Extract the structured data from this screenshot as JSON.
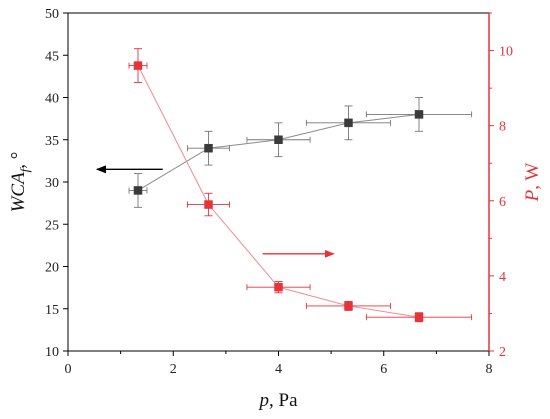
{
  "chart_data": {
    "type": "scatter",
    "title": "",
    "xlabel": {
      "symbol": "p",
      "unit": ", Pa"
    },
    "ylabel_left": {
      "symbol": "WCA",
      "subscript": "f",
      "unit": ", °"
    },
    "ylabel_right": {
      "symbol": "P",
      "unit": ", W"
    },
    "xlim": [
      0,
      8
    ],
    "ylim_left": [
      10,
      50
    ],
    "ylim_right": [
      2,
      11
    ],
    "x_ticks": [
      0,
      2,
      4,
      6,
      8
    ],
    "y_left_ticks": [
      10,
      15,
      20,
      25,
      30,
      35,
      40,
      45,
      50
    ],
    "y_right_ticks": [
      2,
      4,
      6,
      8,
      10
    ],
    "grid": false,
    "series": [
      {
        "axis": "left",
        "color": "#3a3a3a",
        "marker": "square",
        "points": [
          {
            "x": 1.33,
            "y": 29,
            "xerr": 0.17,
            "yerr": 2
          },
          {
            "x": 2.67,
            "y": 34,
            "xerr": 0.4,
            "yerr": 2
          },
          {
            "x": 4.0,
            "y": 35,
            "xerr": 0.6,
            "yerr": 2
          },
          {
            "x": 5.33,
            "y": 37,
            "xerr": 0.8,
            "yerr": 2
          },
          {
            "x": 6.67,
            "y": 38,
            "xerr": 1.0,
            "yerr": 2
          }
        ]
      },
      {
        "axis": "right",
        "color": "#e8323a",
        "marker": "square",
        "points": [
          {
            "x": 1.33,
            "y": 9.6,
            "xerr": 0.17,
            "yerr": 0.45
          },
          {
            "x": 2.67,
            "y": 5.9,
            "xerr": 0.4,
            "yerr": 0.3
          },
          {
            "x": 4.0,
            "y": 3.7,
            "xerr": 0.6,
            "yerr": 0.15
          },
          {
            "x": 5.33,
            "y": 3.2,
            "xerr": 0.8,
            "yerr": 0.12
          },
          {
            "x": 6.67,
            "y": 2.9,
            "xerr": 1.0,
            "yerr": 0.12
          }
        ]
      }
    ],
    "annotations": [
      {
        "type": "arrow",
        "direction": "left",
        "color": "#000000",
        "x_from": 1.8,
        "x_to": 0.55,
        "y": 31.5,
        "axis": "left"
      },
      {
        "type": "arrow",
        "direction": "right",
        "color": "#e8323a",
        "x_from": 3.7,
        "x_to": 5.05,
        "y": 21.5,
        "axis": "left"
      }
    ]
  }
}
